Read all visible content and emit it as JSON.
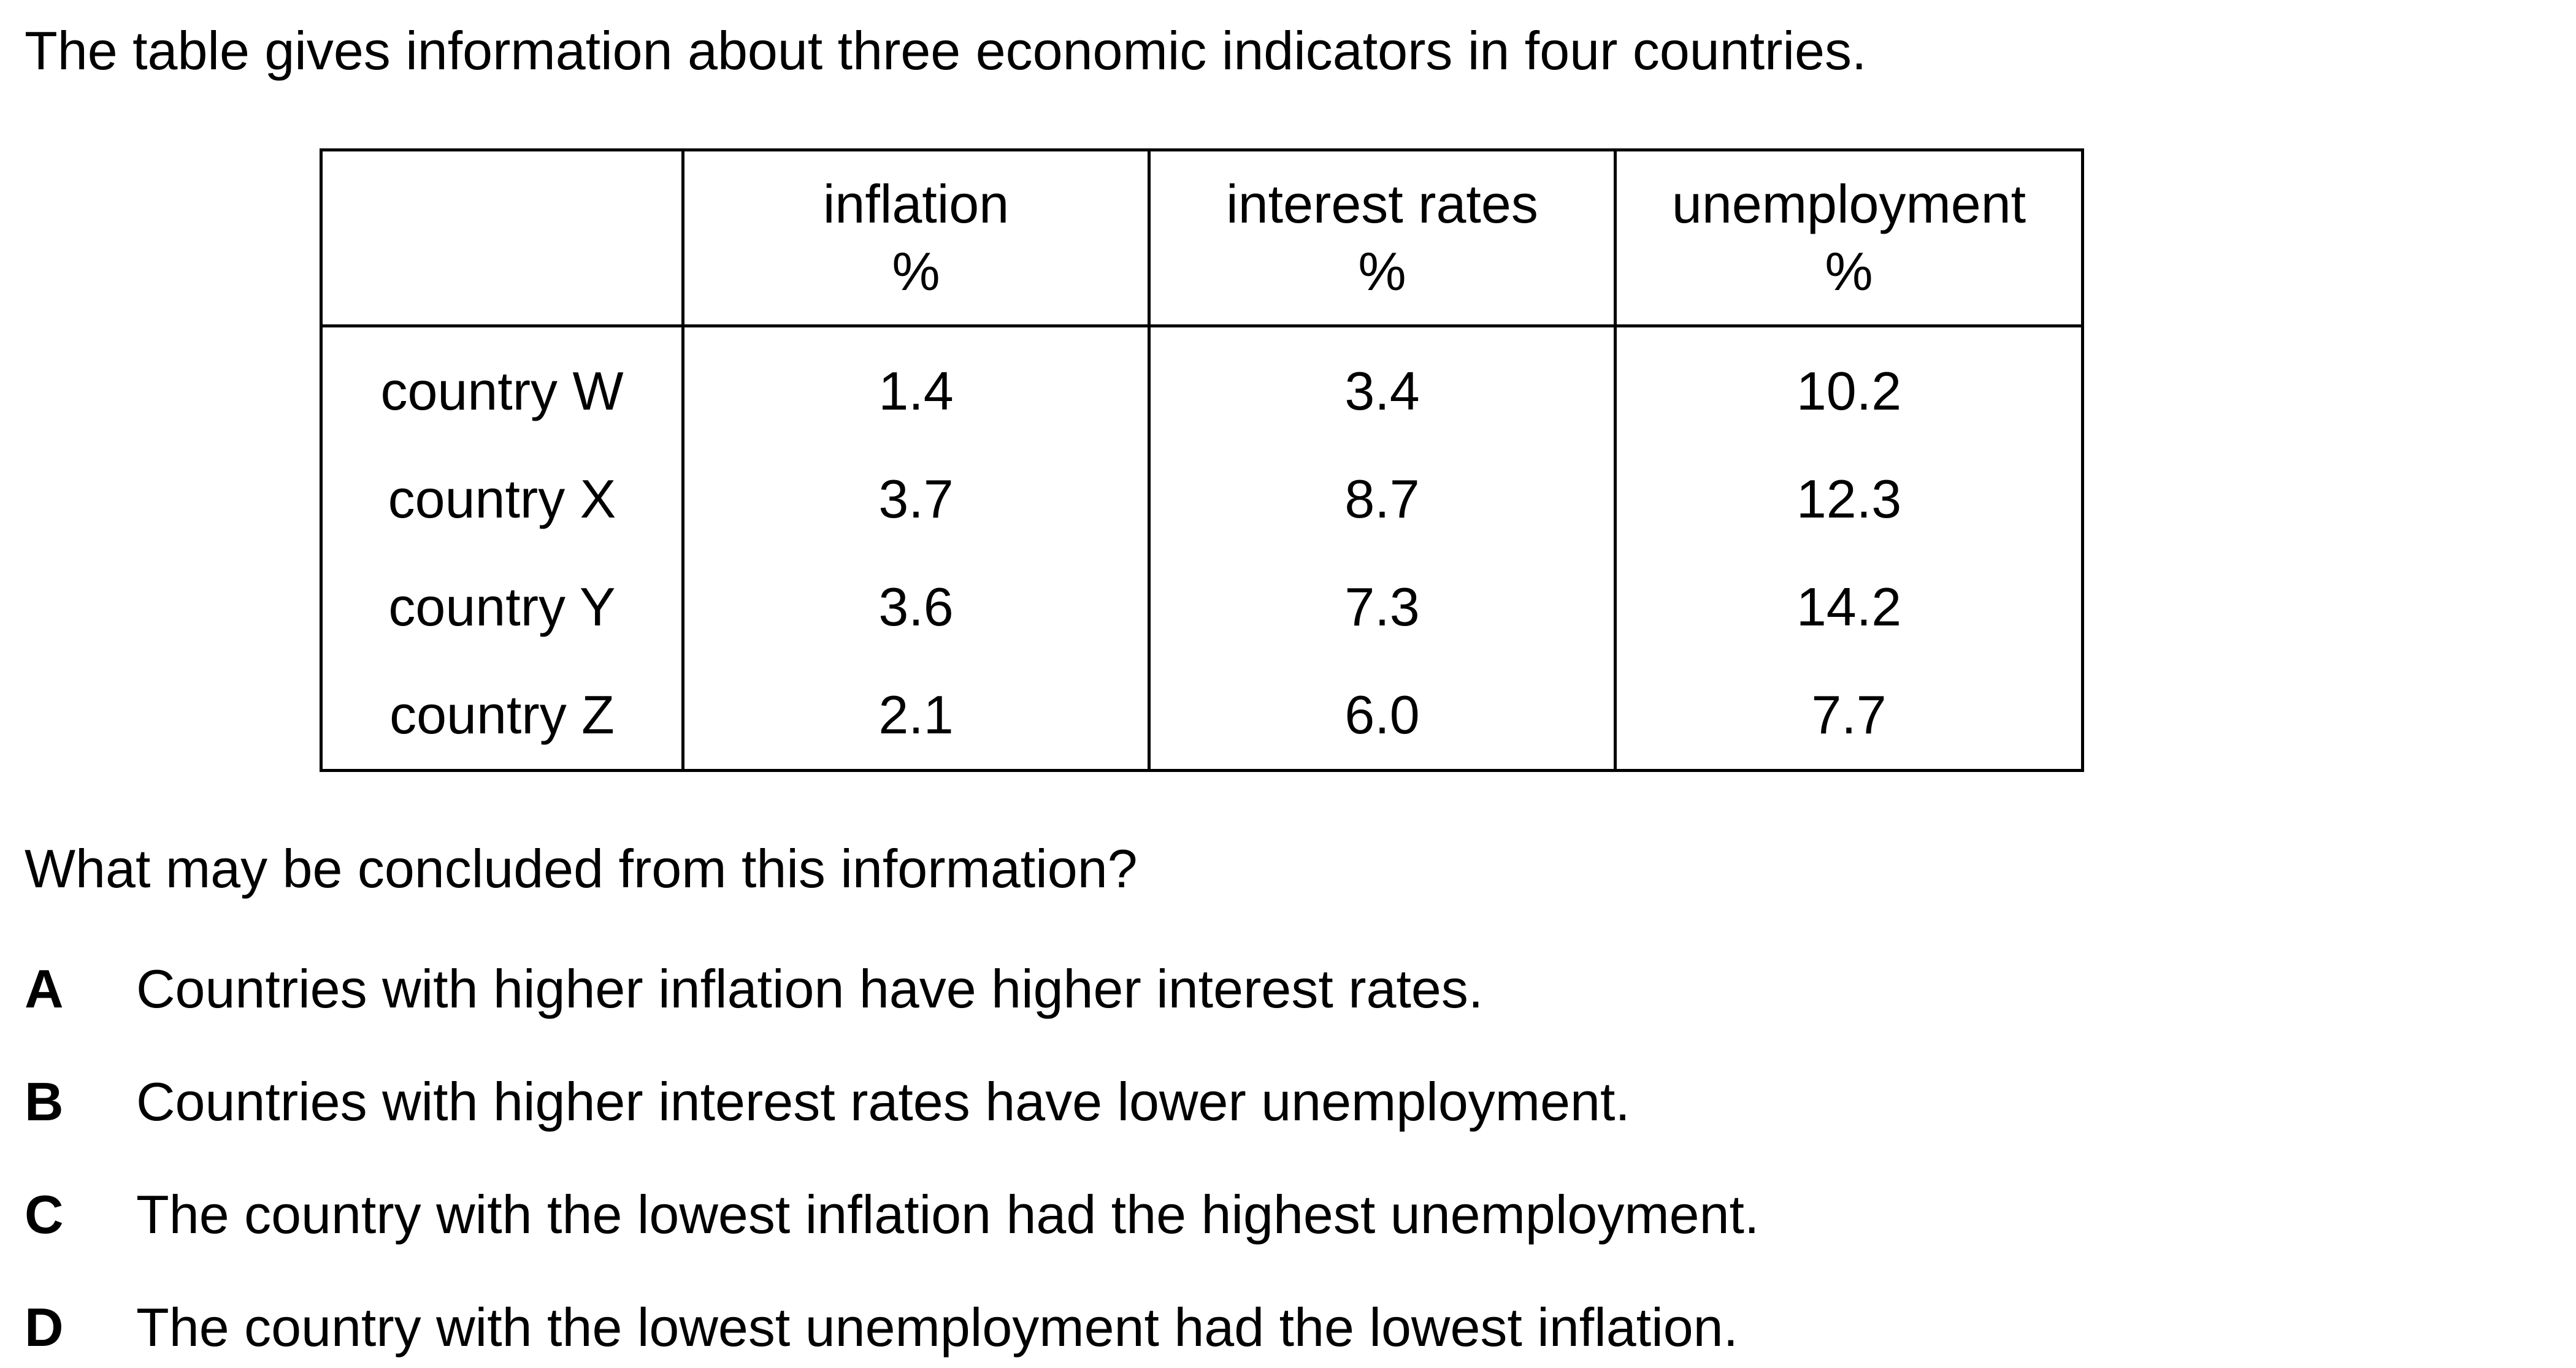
{
  "intro": "The table gives information about three economic indicators in four countries.",
  "table": {
    "headers": [
      {
        "line1": "",
        "line2": ""
      },
      {
        "line1": "inflation",
        "line2": "%"
      },
      {
        "line1": "interest rates",
        "line2": "%"
      },
      {
        "line1": "unemployment",
        "line2": "%"
      }
    ],
    "rows": [
      [
        "country W",
        "1.4",
        "3.4",
        "10.2"
      ],
      [
        "country X",
        "3.7",
        "8.7",
        "12.3"
      ],
      [
        "country Y",
        "3.6",
        "7.3",
        "14.2"
      ],
      [
        "country Z",
        "2.1",
        "6.0",
        "7.7"
      ]
    ]
  },
  "question": "What may be concluded from this information?",
  "options": [
    {
      "letter": "A",
      "text": "Countries with higher inflation have higher interest rates."
    },
    {
      "letter": "B",
      "text": "Countries with higher interest rates have lower unemployment."
    },
    {
      "letter": "C",
      "text": "The country with the lowest inflation had the highest unemployment."
    },
    {
      "letter": "D",
      "text": "The country with the lowest unemployment had the lowest inflation."
    }
  ]
}
